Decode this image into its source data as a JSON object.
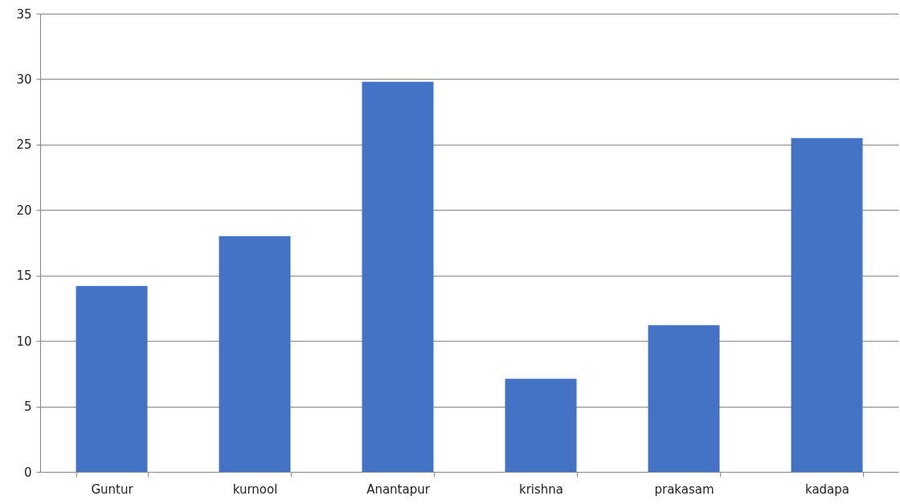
{
  "chart_data": {
    "type": "bar",
    "categories": [
      "Guntur",
      "kurnool",
      "Anantapur",
      "krishna",
      "prakasam",
      "kadapa"
    ],
    "values": [
      14.2,
      18,
      29.8,
      7.1,
      11.2,
      25.5
    ],
    "color": "#4472c4",
    "ylim": [
      0,
      35
    ],
    "yticks": [
      0,
      5,
      10,
      15,
      20,
      25,
      30,
      35
    ],
    "grid": "y"
  }
}
